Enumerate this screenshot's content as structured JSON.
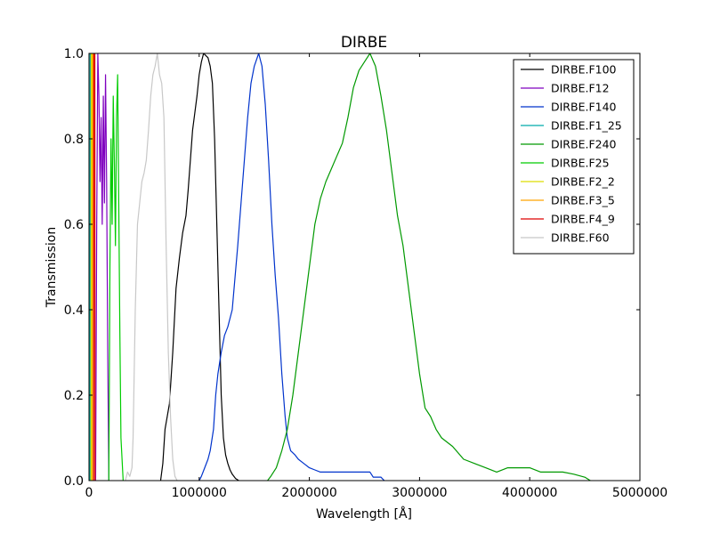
{
  "chart_data": {
    "type": "line",
    "title": "DIRBE",
    "xlabel": "Wavelength [Å]",
    "ylabel": "Transmission",
    "xlim": [
      0,
      5000000
    ],
    "ylim": [
      0,
      1.0
    ],
    "x_ticks": [
      0,
      1000000,
      2000000,
      3000000,
      4000000,
      5000000
    ],
    "x_tick_labels": [
      "0",
      "1000000",
      "2000000",
      "3000000",
      "4000000",
      "5000000"
    ],
    "y_ticks": [
      0,
      0.2,
      0.4,
      0.6,
      0.8,
      1.0
    ],
    "y_tick_labels": [
      "0.0",
      "0.2",
      "0.4",
      "0.6",
      "0.8",
      "1.0"
    ],
    "grid": false,
    "legend_position": "top-right",
    "series": [
      {
        "name": "DIRBE.F100",
        "color": "#000000",
        "points": [
          [
            650000,
            0
          ],
          [
            670000,
            0.04
          ],
          [
            690000,
            0.12
          ],
          [
            710000,
            0.15
          ],
          [
            730000,
            0.18
          ],
          [
            760000,
            0.3
          ],
          [
            790000,
            0.45
          ],
          [
            820000,
            0.52
          ],
          [
            850000,
            0.58
          ],
          [
            880000,
            0.62
          ],
          [
            900000,
            0.68
          ],
          [
            920000,
            0.75
          ],
          [
            940000,
            0.82
          ],
          [
            960000,
            0.86
          ],
          [
            980000,
            0.9
          ],
          [
            1000000,
            0.95
          ],
          [
            1020000,
            0.98
          ],
          [
            1040000,
            1.0
          ],
          [
            1060000,
            0.995
          ],
          [
            1080000,
            0.99
          ],
          [
            1100000,
            0.97
          ],
          [
            1120000,
            0.93
          ],
          [
            1140000,
            0.8
          ],
          [
            1160000,
            0.6
          ],
          [
            1180000,
            0.4
          ],
          [
            1200000,
            0.2
          ],
          [
            1220000,
            0.1
          ],
          [
            1240000,
            0.06
          ],
          [
            1260000,
            0.04
          ],
          [
            1280000,
            0.025
          ],
          [
            1300000,
            0.015
          ],
          [
            1330000,
            0.005
          ],
          [
            1360000,
            0
          ]
        ]
      },
      {
        "name": "DIRBE.F12",
        "color": "#7f00bf",
        "points": [
          [
            60000,
            0
          ],
          [
            70000,
            0.6
          ],
          [
            80000,
            1.0
          ],
          [
            90000,
            0.9
          ],
          [
            100000,
            0.7
          ],
          [
            110000,
            0.85
          ],
          [
            120000,
            0.6
          ],
          [
            130000,
            0.9
          ],
          [
            140000,
            0.65
          ],
          [
            150000,
            0.95
          ],
          [
            160000,
            0.7
          ],
          [
            170000,
            0.3
          ],
          [
            180000,
            0
          ]
        ]
      },
      {
        "name": "DIRBE.F140",
        "color": "#0033cc",
        "points": [
          [
            1000000,
            0
          ],
          [
            1020000,
            0.01
          ],
          [
            1050000,
            0.03
          ],
          [
            1080000,
            0.05
          ],
          [
            1100000,
            0.07
          ],
          [
            1130000,
            0.12
          ],
          [
            1150000,
            0.2
          ],
          [
            1170000,
            0.25
          ],
          [
            1200000,
            0.3
          ],
          [
            1230000,
            0.34
          ],
          [
            1260000,
            0.36
          ],
          [
            1300000,
            0.4
          ],
          [
            1320000,
            0.46
          ],
          [
            1350000,
            0.55
          ],
          [
            1380000,
            0.65
          ],
          [
            1410000,
            0.75
          ],
          [
            1440000,
            0.85
          ],
          [
            1470000,
            0.93
          ],
          [
            1500000,
            0.97
          ],
          [
            1540000,
            1.0
          ],
          [
            1570000,
            0.97
          ],
          [
            1600000,
            0.88
          ],
          [
            1630000,
            0.75
          ],
          [
            1660000,
            0.6
          ],
          [
            1690000,
            0.48
          ],
          [
            1720000,
            0.38
          ],
          [
            1750000,
            0.25
          ],
          [
            1780000,
            0.15
          ],
          [
            1800000,
            0.1
          ],
          [
            1830000,
            0.07
          ],
          [
            1870000,
            0.06
          ],
          [
            1900000,
            0.05
          ],
          [
            1950000,
            0.04
          ],
          [
            2000000,
            0.03
          ],
          [
            2050000,
            0.025
          ],
          [
            2100000,
            0.02
          ],
          [
            2300000,
            0.02
          ],
          [
            2550000,
            0.02
          ],
          [
            2580000,
            0.008
          ],
          [
            2650000,
            0.008
          ],
          [
            2680000,
            0
          ]
        ]
      },
      {
        "name": "DIRBE.F1_25",
        "color": "#00aaaa",
        "points": [
          [
            8000,
            0
          ],
          [
            10000,
            1.0
          ],
          [
            13000,
            1.0
          ],
          [
            15000,
            0
          ]
        ]
      },
      {
        "name": "DIRBE.F240",
        "color": "#009900",
        "points": [
          [
            1620000,
            0
          ],
          [
            1650000,
            0.01
          ],
          [
            1700000,
            0.03
          ],
          [
            1750000,
            0.07
          ],
          [
            1800000,
            0.12
          ],
          [
            1850000,
            0.2
          ],
          [
            1900000,
            0.3
          ],
          [
            1950000,
            0.4
          ],
          [
            2000000,
            0.5
          ],
          [
            2050000,
            0.6
          ],
          [
            2100000,
            0.66
          ],
          [
            2150000,
            0.7
          ],
          [
            2200000,
            0.73
          ],
          [
            2250000,
            0.76
          ],
          [
            2300000,
            0.79
          ],
          [
            2350000,
            0.85
          ],
          [
            2400000,
            0.92
          ],
          [
            2450000,
            0.96
          ],
          [
            2500000,
            0.98
          ],
          [
            2550000,
            1.0
          ],
          [
            2600000,
            0.97
          ],
          [
            2650000,
            0.9
          ],
          [
            2700000,
            0.82
          ],
          [
            2750000,
            0.72
          ],
          [
            2800000,
            0.62
          ],
          [
            2850000,
            0.55
          ],
          [
            2900000,
            0.45
          ],
          [
            2950000,
            0.35
          ],
          [
            3000000,
            0.25
          ],
          [
            3050000,
            0.17
          ],
          [
            3100000,
            0.15
          ],
          [
            3150000,
            0.12
          ],
          [
            3200000,
            0.1
          ],
          [
            3300000,
            0.08
          ],
          [
            3400000,
            0.05
          ],
          [
            3500000,
            0.04
          ],
          [
            3600000,
            0.03
          ],
          [
            3700000,
            0.02
          ],
          [
            3800000,
            0.03
          ],
          [
            4000000,
            0.03
          ],
          [
            4100000,
            0.02
          ],
          [
            4200000,
            0.02
          ],
          [
            4300000,
            0.02
          ],
          [
            4400000,
            0.015
          ],
          [
            4500000,
            0.008
          ],
          [
            4550000,
            0
          ]
        ]
      },
      {
        "name": "DIRBE.F25",
        "color": "#00cc00",
        "points": [
          [
            180000,
            0
          ],
          [
            190000,
            0.5
          ],
          [
            200000,
            0.8
          ],
          [
            210000,
            0.6
          ],
          [
            220000,
            0.9
          ],
          [
            230000,
            0.75
          ],
          [
            240000,
            0.55
          ],
          [
            250000,
            0.85
          ],
          [
            260000,
            0.95
          ],
          [
            270000,
            0.65
          ],
          [
            280000,
            0.35
          ],
          [
            290000,
            0.1
          ],
          [
            300000,
            0.05
          ],
          [
            310000,
            0
          ]
        ]
      },
      {
        "name": "DIRBE.F2_2",
        "color": "#dddd00",
        "points": [
          [
            18000,
            0
          ],
          [
            20000,
            1.0
          ],
          [
            26000,
            1.0
          ],
          [
            28000,
            0
          ]
        ]
      },
      {
        "name": "DIRBE.F3_5",
        "color": "#ffa500",
        "points": [
          [
            30000,
            0
          ],
          [
            32000,
            1.0
          ],
          [
            40000,
            1.0
          ],
          [
            42000,
            0
          ]
        ]
      },
      {
        "name": "DIRBE.F4_9",
        "color": "#dd0000",
        "points": [
          [
            42000,
            0
          ],
          [
            44000,
            1.0
          ],
          [
            53000,
            1.0
          ],
          [
            55000,
            0
          ]
        ]
      },
      {
        "name": "DIRBE.F60",
        "color": "#c8c8c8",
        "points": [
          [
            330000,
            0
          ],
          [
            350000,
            0.02
          ],
          [
            370000,
            0.01
          ],
          [
            390000,
            0.03
          ],
          [
            400000,
            0.1
          ],
          [
            420000,
            0.4
          ],
          [
            440000,
            0.6
          ],
          [
            460000,
            0.65
          ],
          [
            480000,
            0.7
          ],
          [
            500000,
            0.72
          ],
          [
            520000,
            0.75
          ],
          [
            540000,
            0.82
          ],
          [
            560000,
            0.9
          ],
          [
            580000,
            0.95
          ],
          [
            600000,
            0.97
          ],
          [
            620000,
            1.0
          ],
          [
            640000,
            0.95
          ],
          [
            660000,
            0.93
          ],
          [
            680000,
            0.85
          ],
          [
            700000,
            0.55
          ],
          [
            720000,
            0.3
          ],
          [
            740000,
            0.15
          ],
          [
            760000,
            0.05
          ],
          [
            780000,
            0.01
          ],
          [
            800000,
            0
          ]
        ]
      }
    ]
  }
}
